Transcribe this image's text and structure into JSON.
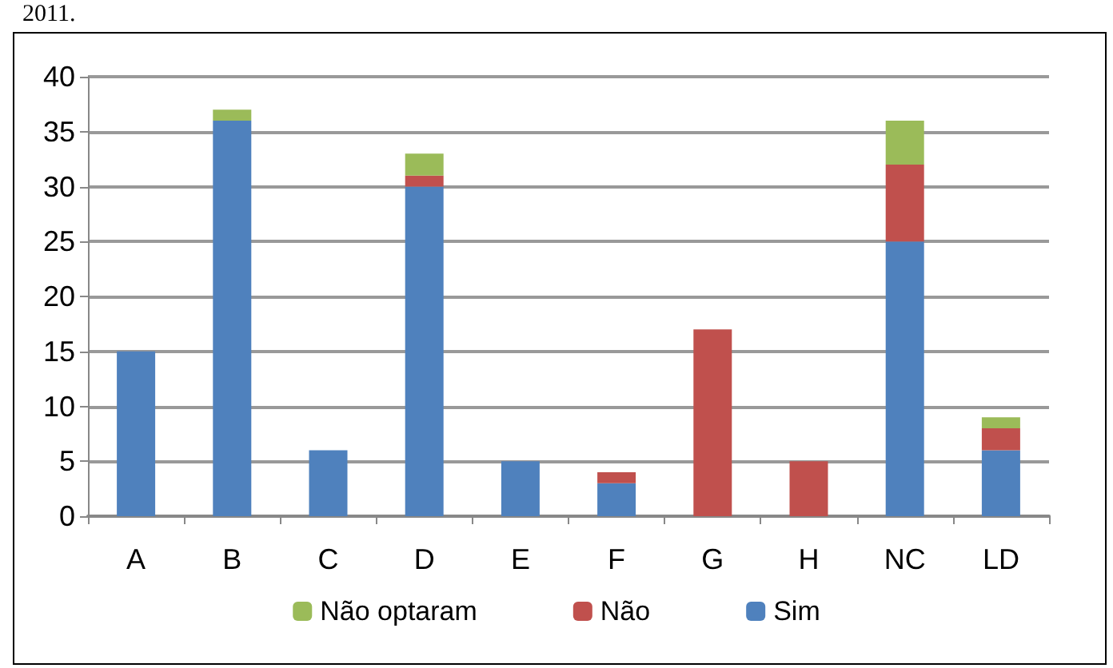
{
  "chart_data": {
    "type": "bar",
    "stacked": true,
    "annotations": [
      "2011."
    ],
    "categories": [
      "A",
      "B",
      "C",
      "D",
      "E",
      "F",
      "G",
      "H",
      "NC",
      "LD"
    ],
    "series": [
      {
        "name": "Sim",
        "color": "#4f81bd",
        "values": [
          15,
          36,
          6,
          30,
          5,
          3,
          0,
          0,
          25,
          6
        ]
      },
      {
        "name": "Não",
        "color": "#c0504d",
        "values": [
          0,
          0,
          0,
          1,
          0,
          1,
          17,
          5,
          7,
          2
        ]
      },
      {
        "name": "Não optaram",
        "color": "#9bbb59",
        "values": [
          0,
          1,
          0,
          2,
          0,
          0,
          0,
          0,
          4,
          1
        ]
      }
    ],
    "ylim": [
      0,
      40
    ],
    "yticks": [
      0,
      5,
      10,
      15,
      20,
      25,
      30,
      35,
      40
    ],
    "grid": "y",
    "legend": "bottom"
  }
}
